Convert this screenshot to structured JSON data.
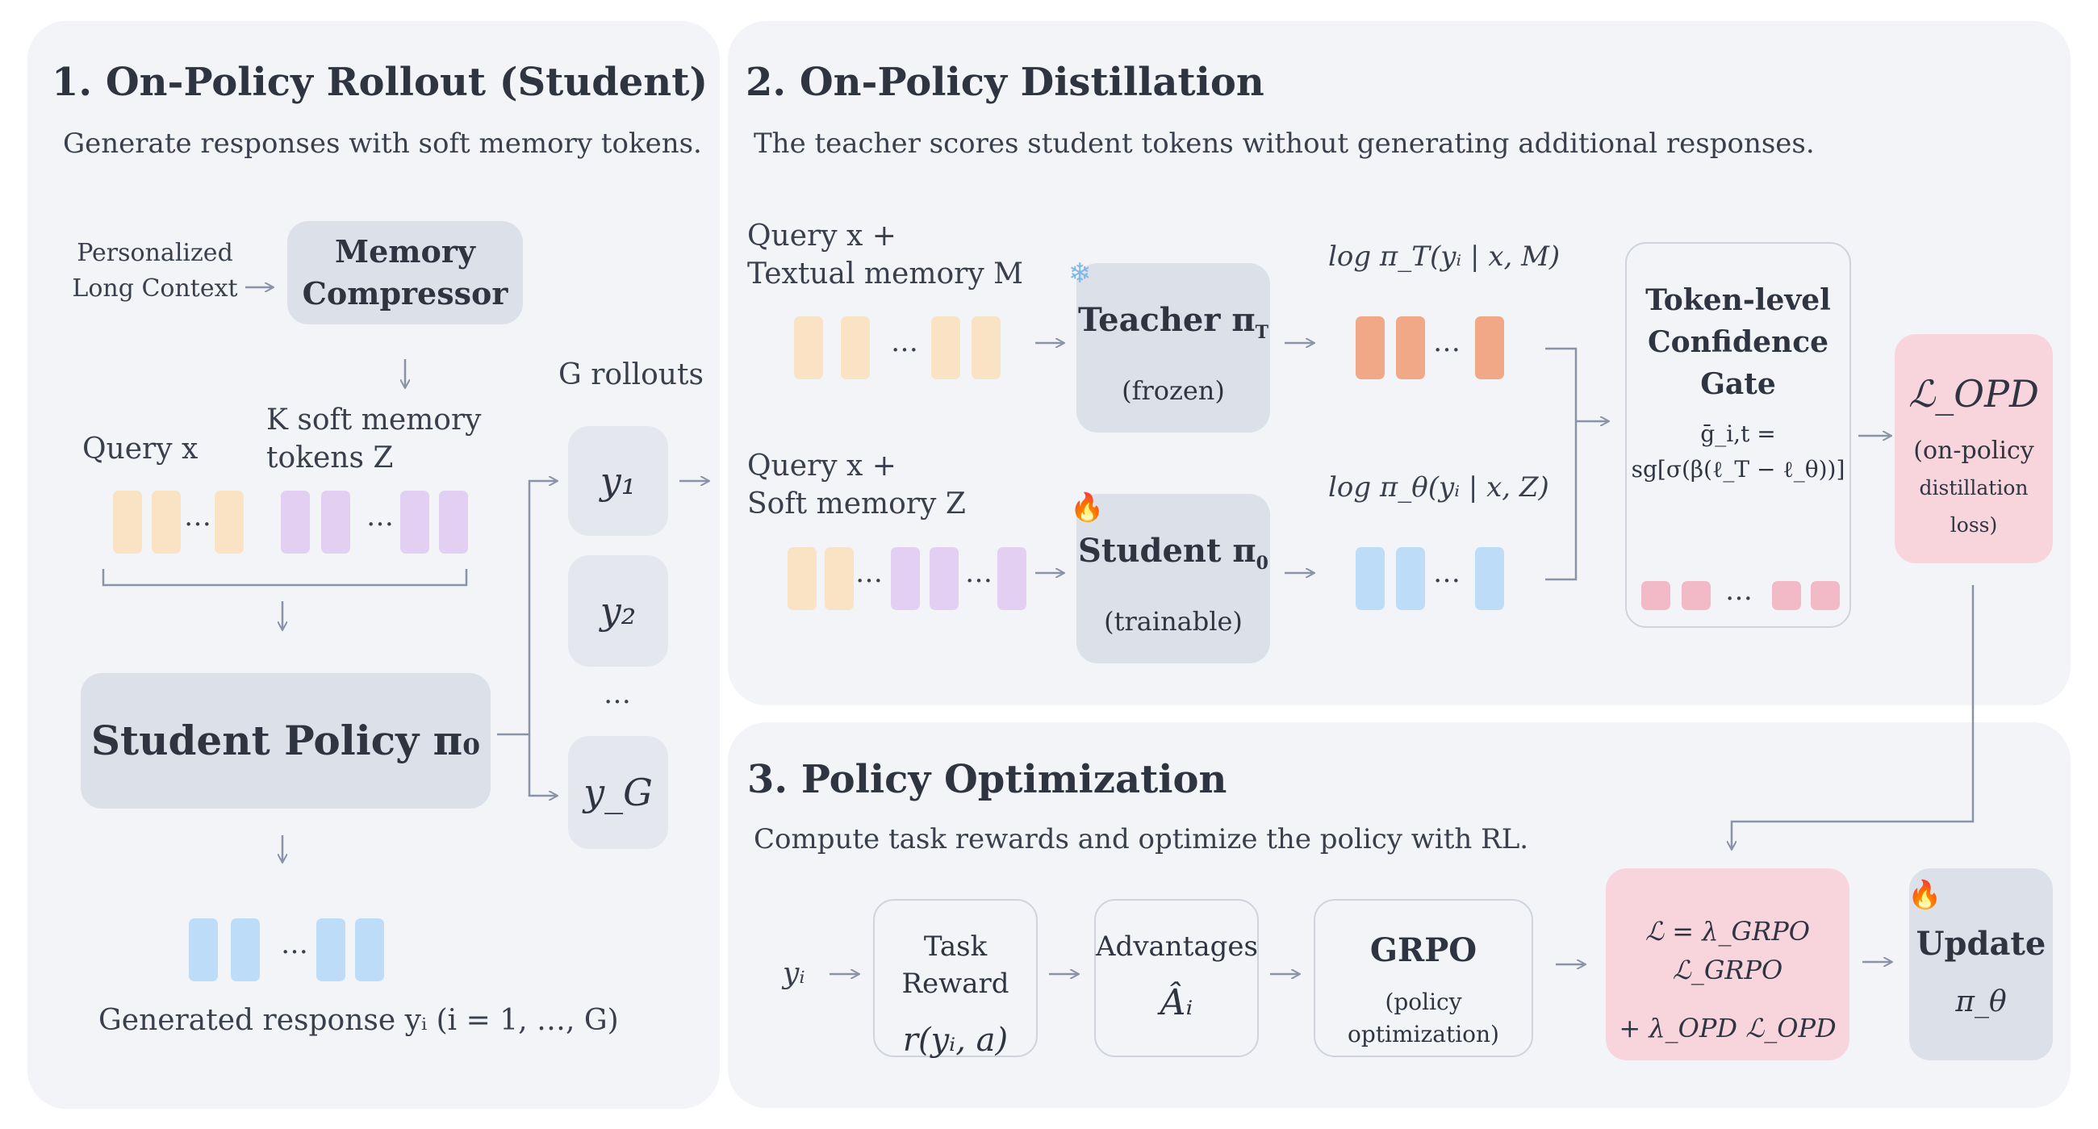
{
  "panel1": {
    "title": "1. On-Policy Rollout (Student)",
    "subtitle": "Generate responses with soft memory tokens.",
    "personalized_line1": "Personalized",
    "personalized_line2": "Long Context",
    "memory_compressor_line1": "Memory",
    "memory_compressor_line2": "Compressor",
    "query": "Query x",
    "soft_memory_line1": "K soft memory",
    "soft_memory_line2": "tokens Z",
    "student_policy": "Student Policy π₀",
    "rollouts_label": "G rollouts",
    "rollouts": [
      "y₁",
      "y₂",
      "…",
      "y_G"
    ],
    "generated_response": "Generated response yᵢ (i = 1, …, G)",
    "dots": "…"
  },
  "panel2": {
    "title": "2. On-Policy Distillation",
    "subtitle": "The teacher scores student tokens without generating additional responses.",
    "teacher_input_line1": "Query x +",
    "teacher_input_line2": "Textual memory M",
    "student_input_line1": "Query x +",
    "student_input_line2": "Soft memory Z",
    "teacher_name": "Teacher π",
    "teacher_sub": "T",
    "teacher_state": "(frozen)",
    "student_name": "Student π",
    "student_sub": "0",
    "student_state": "(trainable)",
    "teacher_logprob": "log π_T(yᵢ | x, M)",
    "student_logprob": "log π_θ(yᵢ | x, Z)",
    "gate_line1": "Token-level",
    "gate_line2": "Confidence",
    "gate_line3": "Gate",
    "gate_formula1": "ḡ_i,t =",
    "gate_formula2": "sg[σ(β(ℓ_T − ℓ_θ))]",
    "opd_loss": "ℒ_OPD",
    "opd_desc1": "(on-policy",
    "opd_desc2": "distillation loss)"
  },
  "panel3": {
    "title": "3. Policy Optimization",
    "subtitle": "Compute task rewards and optimize the policy with RL.",
    "input": "yᵢ",
    "task_reward": "Task Reward",
    "task_reward_formula": "r(yᵢ, a)",
    "advantages": "Advantages",
    "advantages_formula": "Âᵢ",
    "grpo": "GRPO",
    "grpo_desc": "(policy optimization)",
    "loss_line1": "ℒ = λ_GRPO ℒ_GRPO",
    "loss_line2": "+ λ_OPD ℒ_OPD",
    "update": "Update",
    "update_sym": "π_θ"
  },
  "icons": {
    "frozen": "snowflake-icon",
    "trainable": "fire-icon",
    "update": "fire-icon"
  },
  "colors": {
    "panel_bg": "#f2f4f8",
    "node_gray": "#dce1e9",
    "pink": "#f8d5dc",
    "peach_token": "#f9e3c4",
    "lavender_token": "#e2cff2",
    "blue_token": "#bcdcf8",
    "orange_token": "#f0a887",
    "pink_token": "#f2b9c6",
    "arrow": "#8a93a6"
  }
}
